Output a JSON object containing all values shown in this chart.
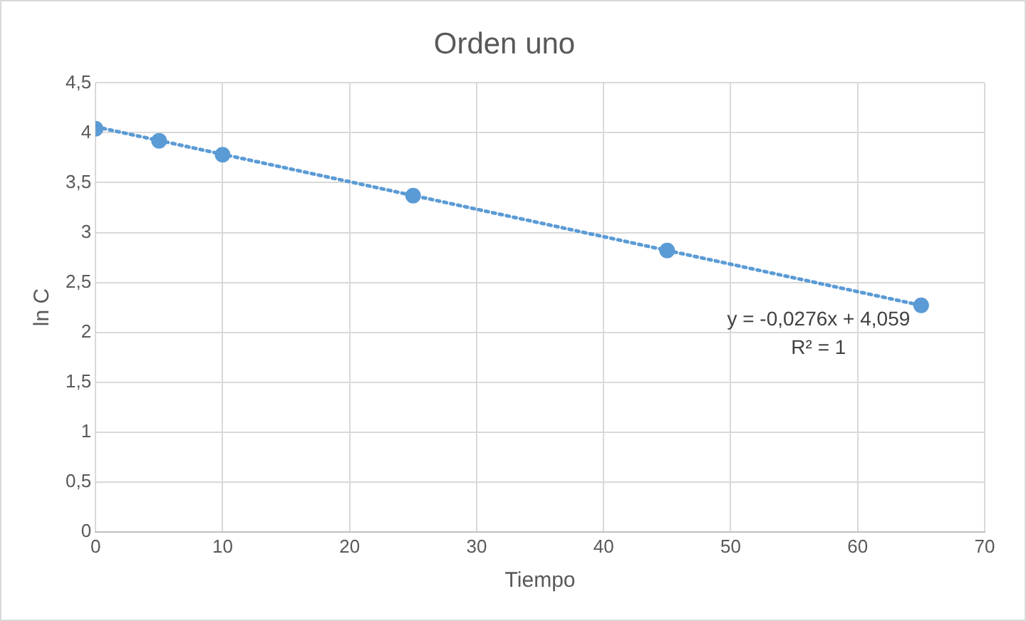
{
  "chart_data": {
    "type": "scatter",
    "title": "Orden uno",
    "xlabel": "Tiempo",
    "ylabel": "ln C",
    "x": [
      0,
      5,
      10,
      25,
      45,
      65
    ],
    "series": [
      {
        "type": "scatter",
        "color": "#5b9bd5",
        "marker": "circle",
        "values": [
          4.04,
          3.92,
          3.78,
          3.37,
          2.82,
          2.27
        ]
      },
      {
        "type": "line",
        "color": "#5b9bd5",
        "marker": "none",
        "line_style": "dotted",
        "x": [
          0,
          65
        ],
        "values": [
          4.06,
          2.27
        ]
      }
    ],
    "xlim": [
      0,
      70
    ],
    "xticks": [
      0,
      10,
      20,
      30,
      40,
      50,
      60,
      70
    ],
    "ylim": [
      0,
      4.5
    ],
    "yticks": [
      0,
      {
        "value": 0.5,
        "label": "0,5"
      },
      1,
      {
        "value": 1.5,
        "label": "1,5"
      },
      2,
      {
        "value": 2.5,
        "label": "2,5"
      },
      3,
      {
        "value": 3.5,
        "label": "3,5"
      },
      4,
      {
        "value": 4.5,
        "label": "4,5"
      }
    ],
    "grid": true,
    "annotations": [
      "y = -0,0276x + 4,059",
      "R² = 1"
    ]
  }
}
